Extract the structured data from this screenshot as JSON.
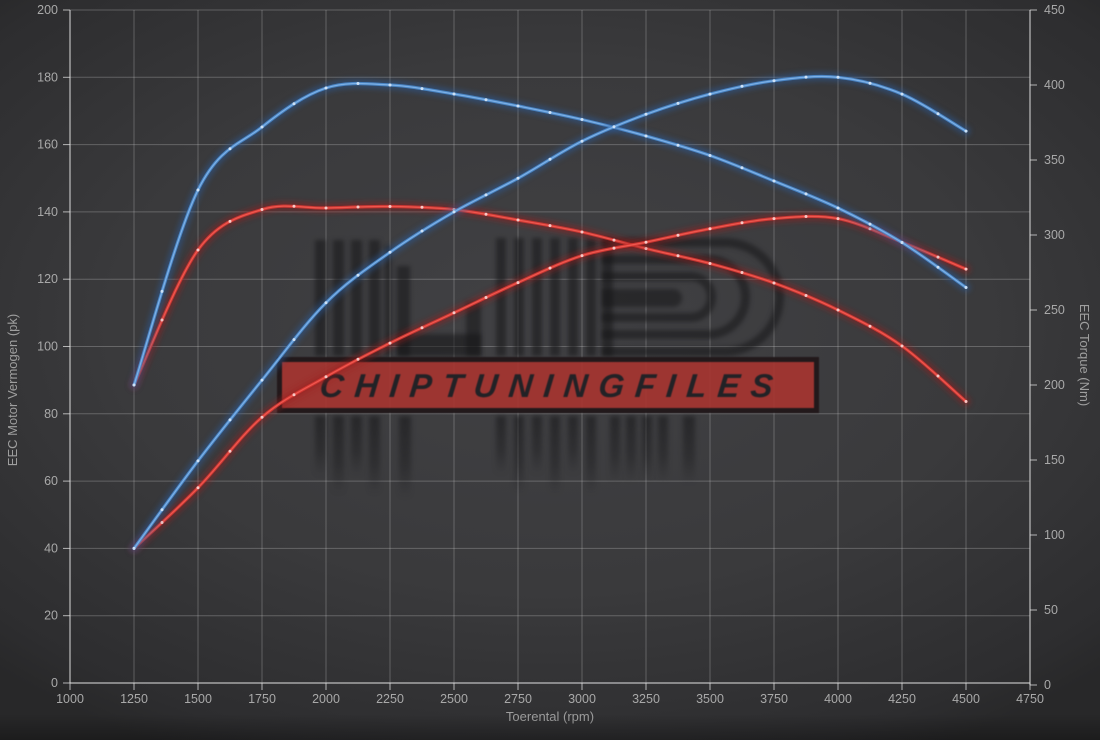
{
  "chart_data": {
    "type": "line",
    "title": "",
    "xlabel": "Toerental (rpm)",
    "ylabel_left": "EEC Motor Vermogen (pk)",
    "ylabel_right": "EEC Torque (Nm)",
    "x_range": [
      1000,
      4750
    ],
    "x_ticks": [
      1000,
      1250,
      1500,
      1750,
      2000,
      2250,
      2500,
      2750,
      3000,
      3250,
      3500,
      3750,
      4000,
      4250,
      4500,
      4750
    ],
    "y_left_range": [
      0,
      200
    ],
    "y_left_ticks": [
      0,
      20,
      40,
      60,
      80,
      100,
      120,
      140,
      160,
      180,
      200
    ],
    "y_right_range": [
      0,
      450
    ],
    "y_right_ticks": [
      0,
      50,
      100,
      150,
      200,
      250,
      300,
      350,
      400,
      450
    ],
    "grid": true,
    "legend": "none",
    "x_rpm": [
      1250,
      1500,
      1750,
      2000,
      2250,
      2500,
      2750,
      3000,
      3250,
      3500,
      3750,
      4000,
      4250,
      4500
    ],
    "series": [
      {
        "name": "original-torque",
        "axis": "right",
        "unit": "Nm",
        "color": "#d93732",
        "glow": "#9a1e1a",
        "core": "#f05a50",
        "dot": "#f6cfcc",
        "values": [
          200,
          290,
          317,
          318,
          319,
          317,
          310,
          302,
          291,
          281,
          268,
          250,
          226,
          189
        ]
      },
      {
        "name": "original-power",
        "axis": "left",
        "unit": "pk",
        "color": "#d93732",
        "glow": "#9a1e1a",
        "core": "#f05a50",
        "dot": "#f6cfcc",
        "values": [
          40,
          58,
          79,
          91,
          101,
          110,
          119,
          127,
          131,
          135,
          138,
          138,
          131,
          123
        ]
      },
      {
        "name": "tuned-torque",
        "axis": "right",
        "unit": "Nm",
        "color": "#4e8ed2",
        "glow": "#2a5c9c",
        "core": "#7fb2e8",
        "dot": "#d2e4f7",
        "values": [
          200,
          330,
          372,
          398,
          400,
          394,
          386,
          377,
          366,
          353,
          336,
          318,
          295,
          265
        ]
      },
      {
        "name": "tuned-power",
        "axis": "left",
        "unit": "pk",
        "color": "#4e8ed2",
        "glow": "#2a5c9c",
        "core": "#7fb2e8",
        "dot": "#d2e4f7",
        "values": [
          40,
          66,
          90,
          113,
          128,
          140,
          150,
          161,
          169,
          175,
          179,
          180,
          175,
          164
        ]
      }
    ]
  },
  "watermark": {
    "text": "CHIPTUNINGFILES",
    "band_color": "#a73430"
  },
  "background": {
    "center": "#414144",
    "edge": "#2d2d2f"
  }
}
